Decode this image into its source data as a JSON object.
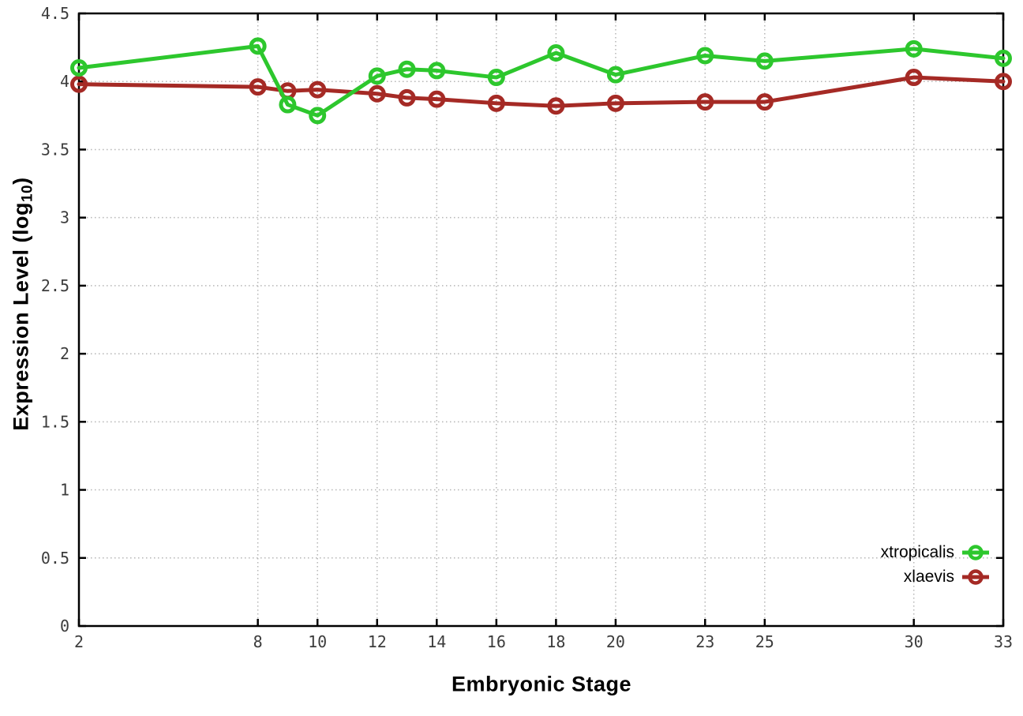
{
  "chart_data": {
    "type": "line",
    "x": [
      2,
      8,
      9,
      10,
      12,
      13,
      14,
      16,
      18,
      20,
      23,
      25,
      30,
      33
    ],
    "series": [
      {
        "name": "xtropicalis",
        "color": "#2dc72d",
        "values": [
          4.1,
          4.26,
          3.83,
          3.75,
          4.04,
          4.09,
          4.08,
          4.03,
          4.21,
          4.05,
          4.19,
          4.15,
          4.24,
          4.17
        ]
      },
      {
        "name": "xlaevis",
        "color": "#a52a25",
        "values": [
          3.98,
          3.96,
          3.93,
          3.94,
          3.91,
          3.88,
          3.87,
          3.84,
          3.82,
          3.84,
          3.85,
          3.85,
          4.03,
          4.0
        ]
      }
    ],
    "xlabel": "Embryonic Stage",
    "ylabel": {
      "pre": "Expression Level (log",
      "sub": "10",
      "post": ")"
    },
    "xlim": [
      2,
      33
    ],
    "ylim": [
      0,
      4.5
    ],
    "xticks": [
      2,
      8,
      10,
      12,
      14,
      16,
      18,
      20,
      23,
      25,
      30,
      33
    ],
    "yticks": [
      0,
      0.5,
      1,
      1.5,
      2,
      2.5,
      3,
      3.5,
      4,
      4.5
    ],
    "grid": true,
    "legend_position": "inside-bottom-right",
    "axis_color": "#000000",
    "grid_color": "#b5b5b5",
    "tick_label_color": "#3c3c3c",
    "background_color": "#ffffff"
  }
}
